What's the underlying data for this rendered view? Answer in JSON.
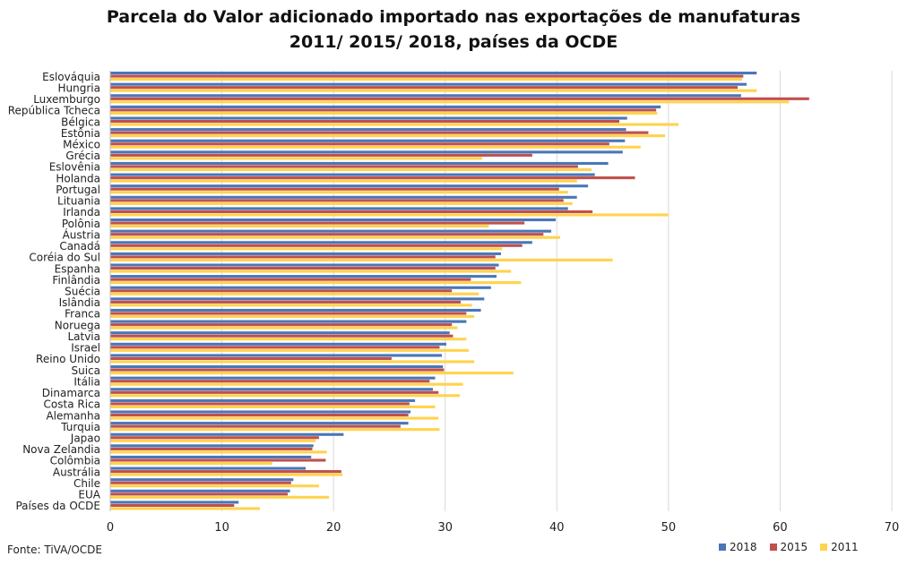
{
  "title_line1": "Parcela do Valor adicionado importado nas exportações de manufaturas",
  "title_line2": "2011/ 2015/ 2018, países da OCDE",
  "source": "Fonte: TiVA/OCDE",
  "colors": {
    "s2018": "#4A76B8",
    "s2015": "#C0504D",
    "s2011": "#FFD34D",
    "grid": "#D9D9D9"
  },
  "chart_data": {
    "type": "bar",
    "orientation": "horizontal",
    "title": "Parcela do Valor adicionado importado nas exportações de manufaturas 2011/ 2015/ 2018, países da OCDE",
    "xlim": [
      0,
      70
    ],
    "x_ticks": [
      0,
      10,
      20,
      30,
      40,
      50,
      60,
      70
    ],
    "grid": true,
    "legend_position": "bottom-right",
    "categories": [
      "Eslováquia",
      "Hungria",
      "Luxemburgo",
      "República Tcheca",
      "Bélgica",
      "Estônia",
      "México",
      "Grécia",
      "Eslovênia",
      "Holanda",
      "Portugal",
      "Lituania",
      "Irlanda",
      "Polônia",
      "Áustria",
      "Canadá",
      "Coréia do Sul",
      "Espanha",
      "Finlândia",
      "Suécia",
      "Islândia",
      "Franca",
      "Noruega",
      "Latvia",
      "Israel",
      "Reino Unido",
      "Suica",
      "Itália",
      "Dinamarca",
      "Costa Rica",
      "Alemanha",
      "Turquia",
      "Japao",
      "Nova Zelandia",
      "Colômbia",
      "Austrália",
      "Chile",
      "EUA",
      "Países da OCDE"
    ],
    "series": [
      {
        "name": "2018",
        "values": [
          57.9,
          57.0,
          56.5,
          49.3,
          46.3,
          46.2,
          46.1,
          45.9,
          44.6,
          43.4,
          42.8,
          41.8,
          41.0,
          39.9,
          39.5,
          37.8,
          35.0,
          34.8,
          34.6,
          34.1,
          33.5,
          33.2,
          31.9,
          30.4,
          30.1,
          29.7,
          29.8,
          29.1,
          28.9,
          27.3,
          26.9,
          26.7,
          20.9,
          18.2,
          18.0,
          17.5,
          16.4,
          16.1,
          11.5
        ]
      },
      {
        "name": "2015",
        "values": [
          56.7,
          56.2,
          62.6,
          48.9,
          45.6,
          48.2,
          44.7,
          37.8,
          41.9,
          47.0,
          40.2,
          40.6,
          43.2,
          37.1,
          38.8,
          36.9,
          34.5,
          34.5,
          32.3,
          30.6,
          31.4,
          31.9,
          30.6,
          30.7,
          29.5,
          25.2,
          29.9,
          28.6,
          29.4,
          26.8,
          26.7,
          26.0,
          18.7,
          18.1,
          19.3,
          20.7,
          16.2,
          15.9,
          11.1
        ]
      },
      {
        "name": "2011",
        "values": [
          56.6,
          57.9,
          60.8,
          49.0,
          50.9,
          49.7,
          47.5,
          33.3,
          43.1,
          41.8,
          41.0,
          41.4,
          50.0,
          33.9,
          40.3,
          35.1,
          45.0,
          35.9,
          36.8,
          33.0,
          32.4,
          32.6,
          31.1,
          31.9,
          32.1,
          32.6,
          36.1,
          31.6,
          31.3,
          29.1,
          29.4,
          29.5,
          18.4,
          19.4,
          14.5,
          20.8,
          18.7,
          19.6,
          13.4
        ]
      }
    ]
  }
}
